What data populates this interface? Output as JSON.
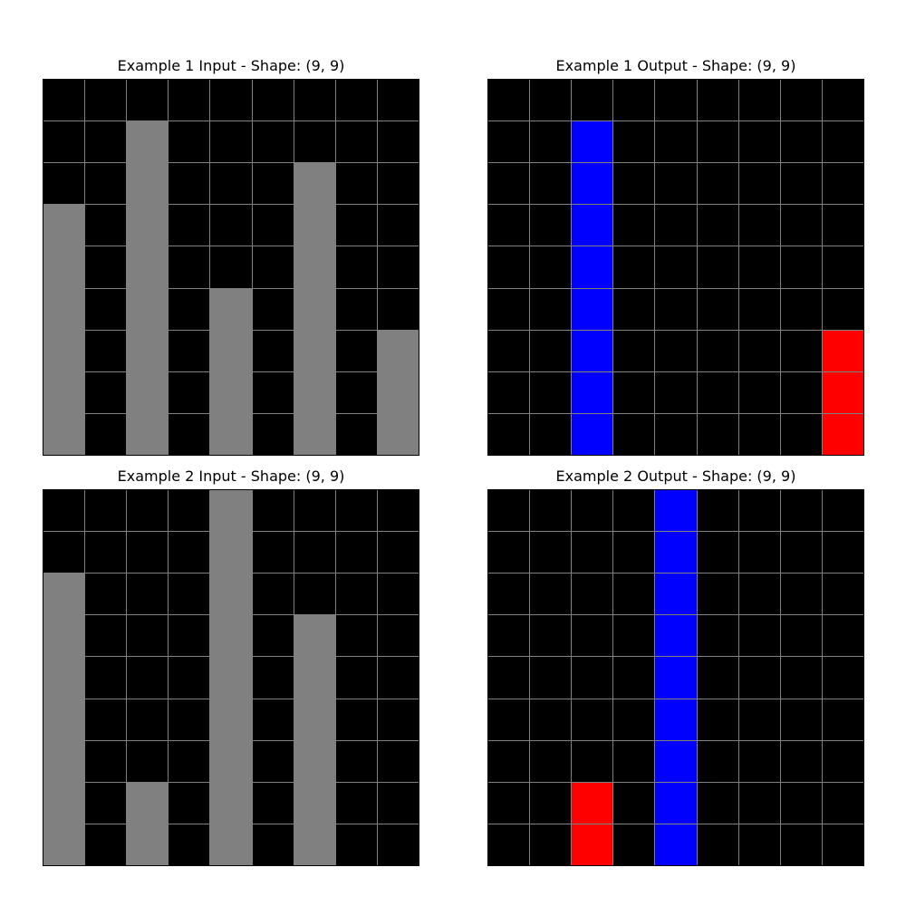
{
  "palette": {
    "0": "#000000",
    "1": "#0000ff",
    "2": "#ff0000",
    "5": "#808080"
  },
  "panels": [
    {
      "title": "Example 1 Input - Shape: (9, 9)",
      "grid": [
        [
          0,
          0,
          0,
          0,
          0,
          0,
          0,
          0,
          0
        ],
        [
          0,
          0,
          5,
          0,
          0,
          0,
          0,
          0,
          0
        ],
        [
          0,
          0,
          5,
          0,
          0,
          0,
          5,
          0,
          0
        ],
        [
          5,
          0,
          5,
          0,
          0,
          0,
          5,
          0,
          0
        ],
        [
          5,
          0,
          5,
          0,
          0,
          0,
          5,
          0,
          0
        ],
        [
          5,
          0,
          5,
          0,
          5,
          0,
          5,
          0,
          0
        ],
        [
          5,
          0,
          5,
          0,
          5,
          0,
          5,
          0,
          5
        ],
        [
          5,
          0,
          5,
          0,
          5,
          0,
          5,
          0,
          5
        ],
        [
          5,
          0,
          5,
          0,
          5,
          0,
          5,
          0,
          5
        ]
      ]
    },
    {
      "title": "Example 1 Output - Shape: (9, 9)",
      "grid": [
        [
          0,
          0,
          0,
          0,
          0,
          0,
          0,
          0,
          0
        ],
        [
          0,
          0,
          1,
          0,
          0,
          0,
          0,
          0,
          0
        ],
        [
          0,
          0,
          1,
          0,
          0,
          0,
          0,
          0,
          0
        ],
        [
          0,
          0,
          1,
          0,
          0,
          0,
          0,
          0,
          0
        ],
        [
          0,
          0,
          1,
          0,
          0,
          0,
          0,
          0,
          0
        ],
        [
          0,
          0,
          1,
          0,
          0,
          0,
          0,
          0,
          0
        ],
        [
          0,
          0,
          1,
          0,
          0,
          0,
          0,
          0,
          2
        ],
        [
          0,
          0,
          1,
          0,
          0,
          0,
          0,
          0,
          2
        ],
        [
          0,
          0,
          1,
          0,
          0,
          0,
          0,
          0,
          2
        ]
      ]
    },
    {
      "title": "Example 2 Input - Shape: (9, 9)",
      "grid": [
        [
          0,
          0,
          0,
          0,
          5,
          0,
          0,
          0,
          0
        ],
        [
          0,
          0,
          0,
          0,
          5,
          0,
          0,
          0,
          0
        ],
        [
          5,
          0,
          0,
          0,
          5,
          0,
          0,
          0,
          0
        ],
        [
          5,
          0,
          0,
          0,
          5,
          0,
          5,
          0,
          0
        ],
        [
          5,
          0,
          0,
          0,
          5,
          0,
          5,
          0,
          0
        ],
        [
          5,
          0,
          0,
          0,
          5,
          0,
          5,
          0,
          0
        ],
        [
          5,
          0,
          0,
          0,
          5,
          0,
          5,
          0,
          0
        ],
        [
          5,
          0,
          5,
          0,
          5,
          0,
          5,
          0,
          0
        ],
        [
          5,
          0,
          5,
          0,
          5,
          0,
          5,
          0,
          0
        ]
      ]
    },
    {
      "title": "Example 2 Output - Shape: (9, 9)",
      "grid": [
        [
          0,
          0,
          0,
          0,
          1,
          0,
          0,
          0,
          0
        ],
        [
          0,
          0,
          0,
          0,
          1,
          0,
          0,
          0,
          0
        ],
        [
          0,
          0,
          0,
          0,
          1,
          0,
          0,
          0,
          0
        ],
        [
          0,
          0,
          0,
          0,
          1,
          0,
          0,
          0,
          0
        ],
        [
          0,
          0,
          0,
          0,
          1,
          0,
          0,
          0,
          0
        ],
        [
          0,
          0,
          0,
          0,
          1,
          0,
          0,
          0,
          0
        ],
        [
          0,
          0,
          0,
          0,
          1,
          0,
          0,
          0,
          0
        ],
        [
          0,
          0,
          2,
          0,
          1,
          0,
          0,
          0,
          0
        ],
        [
          0,
          0,
          2,
          0,
          1,
          0,
          0,
          0,
          0
        ]
      ]
    }
  ]
}
